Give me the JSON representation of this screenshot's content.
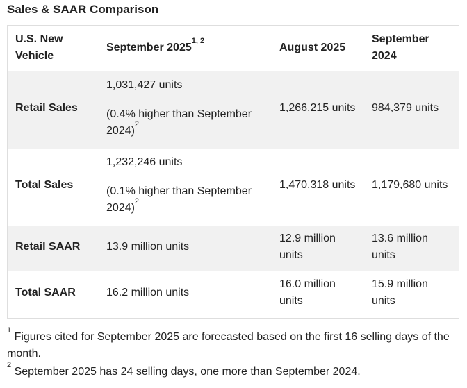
{
  "title": "Sales & SAAR Comparison",
  "header": {
    "col0": "U.S. New Vehicle",
    "col1": "September 2025",
    "col1_sup": "1, 2",
    "col2": "August 2025",
    "col3": "September 2024"
  },
  "rows": [
    {
      "label": "Retail Sales",
      "sep2025": "1,031,427 units",
      "sep2025_note": "(0.4% higher than September 2024)",
      "sep2025_note_sup": "2",
      "aug2025": "1,266,215 units",
      "sep2024": "984,379 units"
    },
    {
      "label": "Total Sales",
      "sep2025": "1,232,246 units",
      "sep2025_note": "(0.1% higher than September 2024)",
      "sep2025_note_sup": "2",
      "aug2025": "1,470,318 units",
      "sep2024": "1,179,680 units"
    },
    {
      "label": "Retail SAAR",
      "sep2025": "13.9 million units",
      "aug2025": "12.9 million units",
      "sep2024": "13.6 million units"
    },
    {
      "label": "Total SAAR",
      "sep2025": "16.2 million units",
      "aug2025": "16.0 million units",
      "sep2024": "15.9 million units"
    }
  ],
  "footnotes": [
    {
      "mark": "1",
      "text": "Figures cited for September 2025 are forecasted based on the first 16 selling days of the month."
    },
    {
      "mark": "2",
      "text": "September 2025 has 24 selling days, one more than September 2024."
    }
  ]
}
